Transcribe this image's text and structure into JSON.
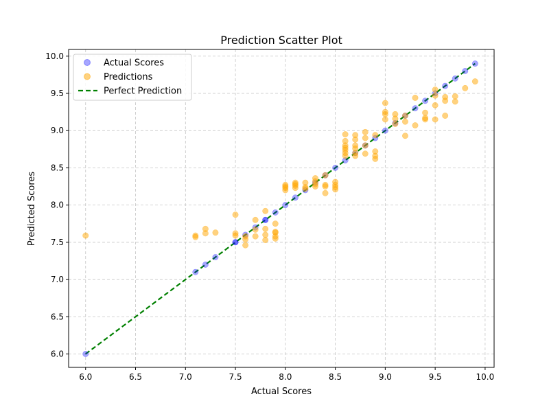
{
  "chart_data": {
    "type": "scatter",
    "title": "Prediction Scatter Plot",
    "xlabel": "Actual Scores",
    "ylabel": "Predicted Scores",
    "xlim": [
      5.83,
      10.09
    ],
    "ylim": [
      5.82,
      10.09
    ],
    "xticks": [
      6.0,
      6.5,
      7.0,
      7.5,
      8.0,
      8.5,
      9.0,
      9.5,
      10.0
    ],
    "yticks": [
      6.0,
      6.5,
      7.0,
      7.5,
      8.0,
      8.5,
      9.0,
      9.5,
      10.0
    ],
    "tick_labels": [
      "6.0",
      "6.5",
      "7.0",
      "7.5",
      "8.0",
      "8.5",
      "9.0",
      "9.5",
      "10.0"
    ],
    "grid": true,
    "legend_position": "top-left",
    "series": [
      {
        "name": "Actual Scores",
        "color": "#0000ff",
        "alpha": 0.35,
        "x": [
          6.0,
          7.1,
          7.2,
          7.3,
          7.5,
          7.5,
          7.6,
          7.7,
          7.8,
          7.8,
          7.9,
          8.0,
          8.1,
          8.2,
          8.3,
          8.4,
          8.5,
          8.6,
          8.7,
          8.8,
          8.9,
          9.0,
          9.1,
          9.2,
          9.3,
          9.4,
          9.5,
          9.6,
          9.7,
          9.8,
          9.9
        ],
        "y": [
          6.0,
          7.1,
          7.2,
          7.3,
          7.5,
          7.5,
          7.6,
          7.7,
          7.8,
          7.8,
          7.9,
          8.0,
          8.1,
          8.2,
          8.3,
          8.4,
          8.5,
          8.6,
          8.7,
          8.8,
          8.9,
          9.0,
          9.1,
          9.2,
          9.3,
          9.4,
          9.5,
          9.6,
          9.7,
          9.8,
          9.9
        ]
      },
      {
        "name": "Predictions",
        "color": "#ffa500",
        "alpha": 0.5,
        "x": [
          6.0,
          7.1,
          7.1,
          7.2,
          7.2,
          7.3,
          7.5,
          7.5,
          7.5,
          7.6,
          7.6,
          7.6,
          7.7,
          7.7,
          7.7,
          7.8,
          7.8,
          7.8,
          7.8,
          7.9,
          7.9,
          7.9,
          7.9,
          7.9,
          8.0,
          8.0,
          8.0,
          8.0,
          8.1,
          8.1,
          8.1,
          8.1,
          8.2,
          8.2,
          8.2,
          8.3,
          8.3,
          8.3,
          8.3,
          8.4,
          8.4,
          8.4,
          8.4,
          8.5,
          8.5,
          8.5,
          8.5,
          8.6,
          8.6,
          8.6,
          8.6,
          8.6,
          8.6,
          8.6,
          8.7,
          8.7,
          8.7,
          8.7,
          8.7,
          8.7,
          8.8,
          8.8,
          8.8,
          8.8,
          8.9,
          8.9,
          8.9,
          8.9,
          9.0,
          9.0,
          9.0,
          9.0,
          9.1,
          9.1,
          9.1,
          9.2,
          9.2,
          9.2,
          9.3,
          9.3,
          9.4,
          9.4,
          9.4,
          9.5,
          9.5,
          9.5,
          9.5,
          9.6,
          9.6,
          9.6,
          9.7,
          9.7,
          9.8,
          9.9
        ],
        "y": [
          7.59,
          7.57,
          7.59,
          7.62,
          7.68,
          7.63,
          7.87,
          7.62,
          7.59,
          7.46,
          7.54,
          7.58,
          7.58,
          7.67,
          7.8,
          7.53,
          7.6,
          7.68,
          7.92,
          7.55,
          7.58,
          7.63,
          7.64,
          7.75,
          8.2,
          8.23,
          8.25,
          8.27,
          8.23,
          8.26,
          8.28,
          8.3,
          8.22,
          8.24,
          8.3,
          8.25,
          8.28,
          8.32,
          8.36,
          8.16,
          8.25,
          8.27,
          8.4,
          8.21,
          8.24,
          8.27,
          8.31,
          8.66,
          8.7,
          8.74,
          8.77,
          8.8,
          8.86,
          8.95,
          8.66,
          8.7,
          8.76,
          8.8,
          8.88,
          8.94,
          8.69,
          8.8,
          8.9,
          8.98,
          8.62,
          8.66,
          8.72,
          8.94,
          9.15,
          9.22,
          9.25,
          9.37,
          9.09,
          9.16,
          9.22,
          8.93,
          9.12,
          9.2,
          9.07,
          9.44,
          9.15,
          9.17,
          9.24,
          9.15,
          9.34,
          9.47,
          9.55,
          9.2,
          9.4,
          9.45,
          9.39,
          9.46,
          9.57,
          9.66
        ]
      },
      {
        "name": "Perfect Prediction",
        "color": "#008000",
        "line": true,
        "dashed": true,
        "x": [
          6.0,
          9.9
        ],
        "y": [
          6.0,
          9.9
        ]
      }
    ]
  }
}
